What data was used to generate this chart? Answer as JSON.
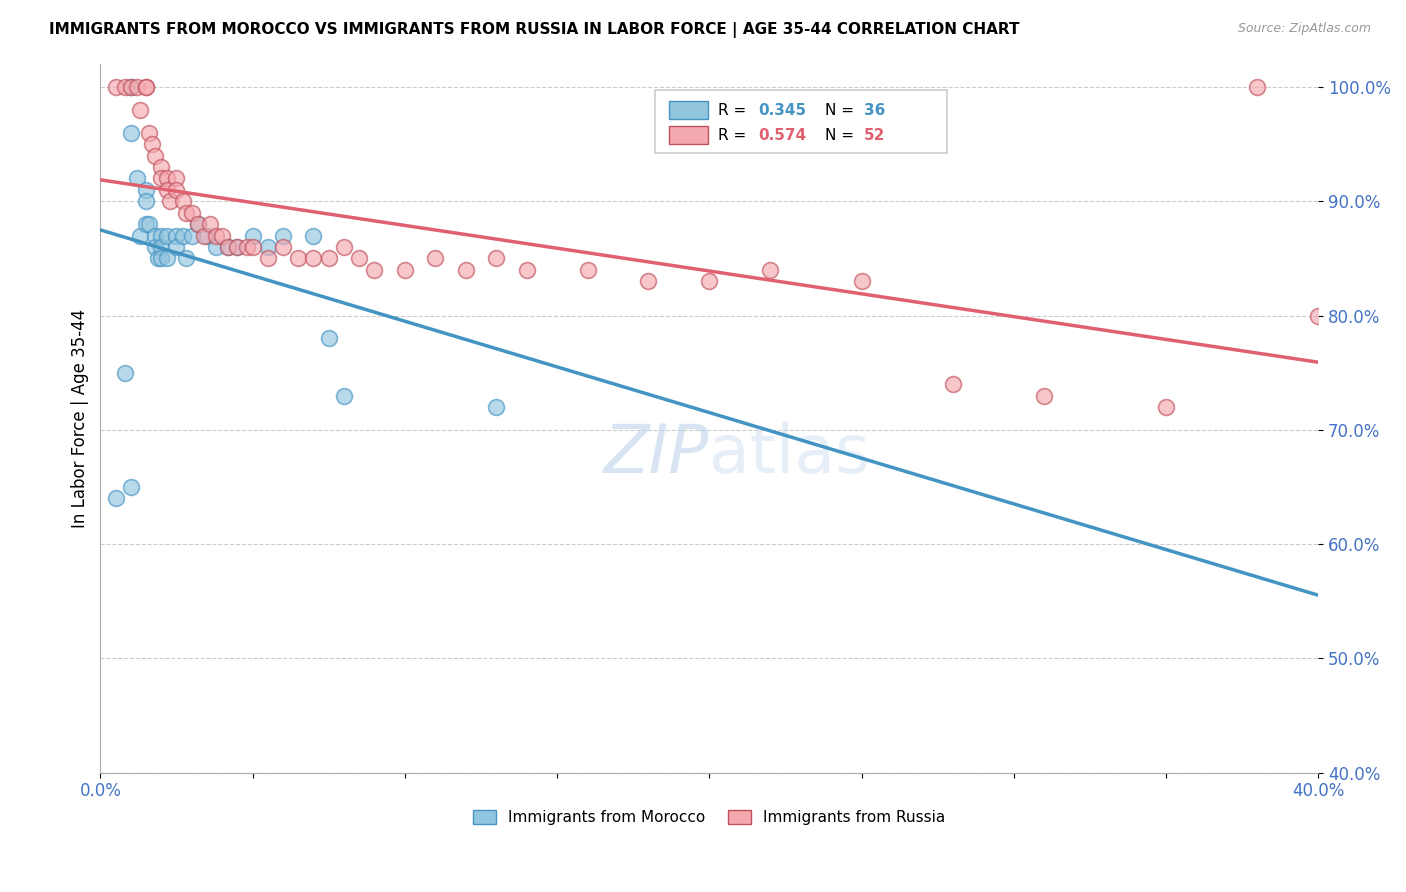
{
  "title": "IMMIGRANTS FROM MOROCCO VS IMMIGRANTS FROM RUSSIA IN LABOR FORCE | AGE 35-44 CORRELATION CHART",
  "source": "Source: ZipAtlas.com",
  "ylabel": "In Labor Force | Age 35-44",
  "r_morocco": 0.345,
  "n_morocco": 36,
  "r_russia": 0.574,
  "n_russia": 52,
  "color_morocco": "#92c5de",
  "color_russia": "#f4a9b0",
  "line_color_morocco": "#4393c3",
  "line_color_russia": "#d6604d",
  "xlim": [
    0.0,
    0.4
  ],
  "ylim": [
    0.4,
    1.02
  ],
  "yticks": [
    0.4,
    0.5,
    0.6,
    0.7,
    0.8,
    0.9,
    1.0
  ],
  "ytick_labels": [
    "40.0%",
    "50.0%",
    "60.0%",
    "70.0%",
    "80.0%",
    "90.0%",
    "100.0%"
  ],
  "xticks": [
    0.0,
    0.05,
    0.1,
    0.15,
    0.2,
    0.25,
    0.3,
    0.35,
    0.4
  ],
  "xtick_labels": [
    "0.0%",
    "",
    "",
    "",
    "",
    "",
    "",
    "",
    "40.0%"
  ],
  "watermark_zip": "ZIP",
  "watermark_atlas": "atlas",
  "morocco_x": [
    0.005,
    0.008,
    0.01,
    0.01,
    0.012,
    0.013,
    0.015,
    0.015,
    0.015,
    0.016,
    0.018,
    0.018,
    0.019,
    0.02,
    0.02,
    0.02,
    0.022,
    0.022,
    0.025,
    0.025,
    0.027,
    0.028,
    0.03,
    0.032,
    0.035,
    0.038,
    0.042,
    0.045,
    0.05,
    0.055,
    0.06,
    0.07,
    0.075,
    0.08,
    0.13,
    0.01
  ],
  "morocco_y": [
    0.64,
    0.75,
    1.0,
    0.96,
    0.92,
    0.87,
    0.91,
    0.9,
    0.88,
    0.88,
    0.87,
    0.86,
    0.85,
    0.87,
    0.86,
    0.85,
    0.87,
    0.85,
    0.87,
    0.86,
    0.87,
    0.85,
    0.87,
    0.88,
    0.87,
    0.86,
    0.86,
    0.86,
    0.87,
    0.86,
    0.87,
    0.87,
    0.78,
    0.73,
    0.72,
    0.65
  ],
  "russia_x": [
    0.005,
    0.008,
    0.01,
    0.012,
    0.013,
    0.015,
    0.015,
    0.016,
    0.017,
    0.018,
    0.02,
    0.02,
    0.022,
    0.022,
    0.023,
    0.025,
    0.025,
    0.027,
    0.028,
    0.03,
    0.032,
    0.034,
    0.036,
    0.038,
    0.04,
    0.042,
    0.045,
    0.048,
    0.05,
    0.055,
    0.06,
    0.065,
    0.07,
    0.075,
    0.08,
    0.085,
    0.09,
    0.1,
    0.11,
    0.12,
    0.13,
    0.14,
    0.16,
    0.18,
    0.2,
    0.22,
    0.25,
    0.28,
    0.31,
    0.35,
    0.38,
    0.4
  ],
  "russia_y": [
    1.0,
    1.0,
    1.0,
    1.0,
    0.98,
    1.0,
    1.0,
    0.96,
    0.95,
    0.94,
    0.93,
    0.92,
    0.92,
    0.91,
    0.9,
    0.92,
    0.91,
    0.9,
    0.89,
    0.89,
    0.88,
    0.87,
    0.88,
    0.87,
    0.87,
    0.86,
    0.86,
    0.86,
    0.86,
    0.85,
    0.86,
    0.85,
    0.85,
    0.85,
    0.86,
    0.85,
    0.84,
    0.84,
    0.85,
    0.84,
    0.85,
    0.84,
    0.84,
    0.83,
    0.83,
    0.84,
    0.83,
    0.74,
    0.73,
    0.72,
    1.0,
    0.8
  ]
}
